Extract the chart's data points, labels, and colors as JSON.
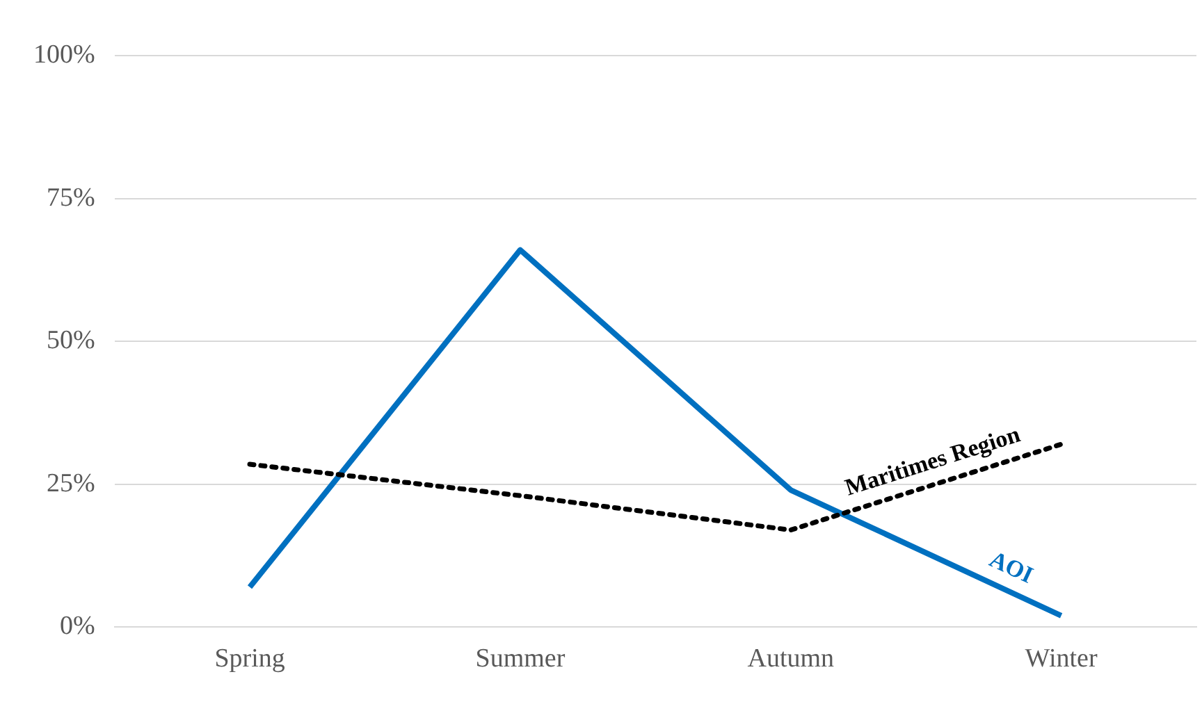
{
  "chart_data": {
    "type": "line",
    "categories": [
      "Spring",
      "Summer",
      "Autumn",
      "Winter"
    ],
    "series": [
      {
        "name": "Maritimes Region",
        "color": "#000000",
        "values": [
          28.5,
          23,
          17,
          32
        ],
        "line_style": "dotted"
      },
      {
        "name": "AOI",
        "color": "#0070c0",
        "values": [
          7,
          66,
          24,
          2
        ],
        "line_style": "solid"
      }
    ],
    "ylim": [
      0,
      100
    ],
    "yticks": [
      {
        "value": 0,
        "label": "0%"
      },
      {
        "value": 25,
        "label": "25%"
      },
      {
        "value": 50,
        "label": "50%"
      },
      {
        "value": 75,
        "label": "75%"
      },
      {
        "value": 100,
        "label": "100%"
      }
    ],
    "grid": "y",
    "legend": false,
    "marker": "none"
  }
}
